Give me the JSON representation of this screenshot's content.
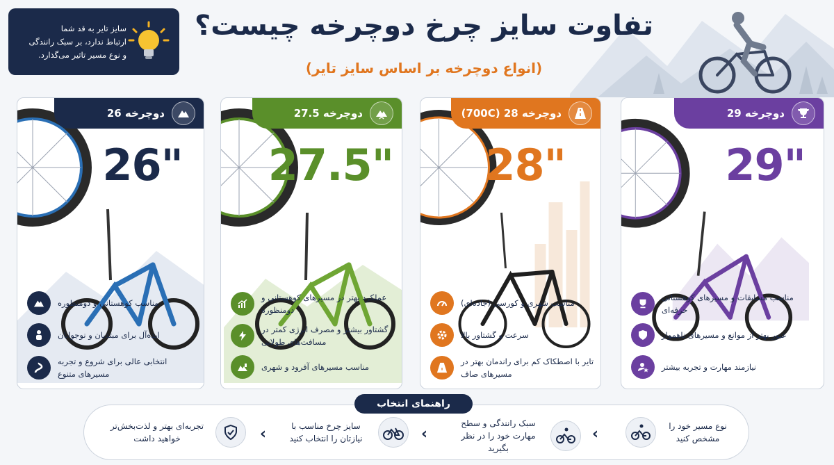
{
  "tip": {
    "text_1": "سایز تایر به قد شما",
    "text_2": "ارتباط ندارد، بر سبک رانندگی",
    "text_3": "و نوع مسیر تاثیر می‌گذارد."
  },
  "header": {
    "title": "تفاوت سایز چرخ دوچرخه چیست؟",
    "subtitle": "(انواع دوچرخه بر اساس سایز تایر)"
  },
  "cards": [
    {
      "label": "دوچرخه 29",
      "size": "29\"",
      "color": "#6b3fa0",
      "icon": "trophy-icon",
      "features": [
        "مناسب مسابقات و مسیرهای کوهستانی حرفه‌ای",
        "عبور بهتر از موانع و مسیرهای ناهموار",
        "نیازمند مهارت و تجربه بیشتر"
      ]
    },
    {
      "label": "دوچرخه 28 (700C)",
      "size": "28\"",
      "color": "#e0761f",
      "icon": "road-icon",
      "features": [
        "مناسب شهری و کورسی (جاده‌ای)",
        "سرعت و گشتاور بالا",
        "تایر با اصطکاک کم برای راندمان بهتر در مسیرهای صاف"
      ]
    },
    {
      "label": "دوچرخه 27.5",
      "size": "27.5\"",
      "color": "#5a8f2a",
      "icon": "mountain-road-icon",
      "features": [
        "عملکرد بهتر در مسیرهای کوهستانی و دومنظوره",
        "گشتاور بیشتر و مصرف انرژی کمتر در مسافت‌های طولانی",
        "مناسب مسیرهای آفرود و شهری"
      ]
    },
    {
      "label": "دوچرخه 26",
      "size": "26\"",
      "color": "#1b2a4a",
      "icon": "mountain-icon",
      "features": [
        "مناسب کوهستانی و دومنظوره",
        "ایده‌آل برای مبتدیان و نوجوانان",
        "انتخابی عالی برای شروع و تجربه مسیرهای متنوع"
      ]
    }
  ],
  "guide": {
    "title": "راهنمای انتخاب",
    "steps": [
      "نوع مسیر خود را مشخص کنید",
      "سبک رانندگی و سطح مهارت خود را در نظر بگیرید",
      "سایز چرخ مناسب با نیازتان را انتخاب کنید",
      "تجربه‌ای بهتر و لذت‌بخش‌تر خواهید داشت"
    ]
  }
}
